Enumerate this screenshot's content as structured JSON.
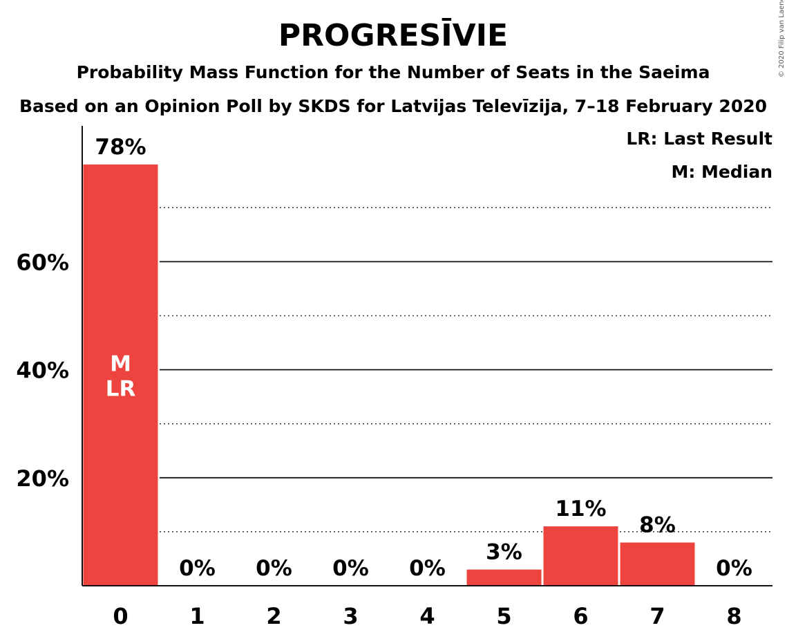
{
  "header": {
    "title": "PROGRESĪVIE",
    "subtitle1": "Probability Mass Function for the Number of Seats in the Saeima",
    "subtitle2": "Based on an Opinion Poll by SKDS for Latvijas Televīzija, 7–18 February 2020"
  },
  "copyright": "© 2020 Filip van Laenen",
  "legend": {
    "last_result": "LR: Last Result",
    "median": "M: Median",
    "placement": "top-right"
  },
  "chart_data": {
    "type": "bar",
    "categories": [
      "0",
      "1",
      "2",
      "3",
      "4",
      "5",
      "6",
      "7",
      "8"
    ],
    "values": [
      78,
      0,
      0,
      0,
      0,
      3,
      11,
      8,
      0
    ],
    "value_labels": [
      "78%",
      "0%",
      "0%",
      "0%",
      "0%",
      "3%",
      "11%",
      "8%",
      "0%"
    ],
    "yticks": [
      20,
      40,
      60
    ],
    "ytick_labels": [
      "20%",
      "40%",
      "60%"
    ],
    "ylim": [
      0,
      80
    ],
    "minor_gridlines": [
      10,
      30,
      50,
      70
    ],
    "bar_color": "#ee4440",
    "median_category": "0",
    "last_result_category": "0",
    "median_marker": "M",
    "last_result_marker": "LR"
  }
}
